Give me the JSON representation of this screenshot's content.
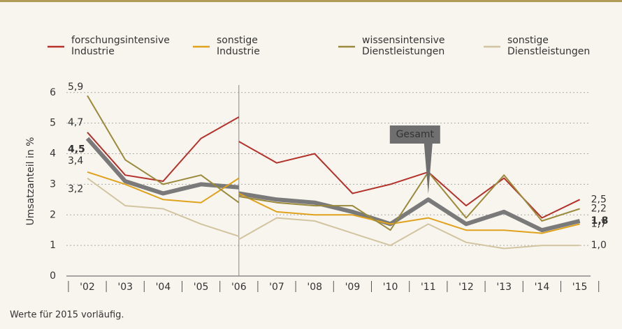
{
  "chart_data": {
    "type": "line",
    "ylabel": "Umsatzanteil in %",
    "note": "Werte für 2015 vorläufig.",
    "categories": [
      "'02",
      "'03",
      "'04",
      "'05",
      "'06",
      null,
      "'07",
      "'08",
      "'09",
      "'10",
      "'11",
      "'12",
      "'13",
      "'14",
      "'15"
    ],
    "ylim": [
      0,
      6.2
    ],
    "yticks": [
      0,
      1,
      2,
      3,
      4,
      5,
      6
    ],
    "grid": true,
    "series": [
      {
        "name": "forschungsintensive\nIndustrie",
        "color": "#b5312b",
        "values": [
          4.7,
          3.3,
          3.1,
          4.5,
          5.2,
          4.4,
          3.7,
          4.0,
          2.7,
          3.0,
          3.4,
          2.3,
          3.2,
          1.9,
          2.5
        ],
        "value_labels": [
          "4,7",
          null,
          null,
          null,
          null,
          null,
          null,
          null,
          null,
          null,
          null,
          null,
          null,
          null,
          "2,5"
        ]
      },
      {
        "name": "sonstige\nIndustrie",
        "color": "#e0a21c",
        "values": [
          3.4,
          3.0,
          2.5,
          2.4,
          3.2,
          2.7,
          2.1,
          2.0,
          2.0,
          1.7,
          1.9,
          1.5,
          1.5,
          1.4,
          1.7
        ],
        "value_labels": [
          "3,4",
          null,
          null,
          null,
          null,
          null,
          null,
          null,
          null,
          null,
          null,
          null,
          null,
          null,
          "1,7"
        ]
      },
      {
        "name": "wissensintensive\nDienstleistungen",
        "color": "#9b8a3c",
        "values": [
          5.9,
          3.8,
          3.0,
          3.3,
          2.4,
          2.6,
          2.4,
          2.3,
          2.3,
          1.5,
          3.4,
          1.9,
          3.3,
          1.8,
          2.2
        ],
        "value_labels": [
          "5,9",
          null,
          null,
          null,
          null,
          null,
          null,
          null,
          null,
          null,
          null,
          null,
          null,
          null,
          "2,2"
        ]
      },
      {
        "name": "sonstige\nDienstleistungen",
        "color": "#d2c4a0",
        "values": [
          3.2,
          2.3,
          2.2,
          1.7,
          1.3,
          1.2,
          1.9,
          1.8,
          1.4,
          1.0,
          1.7,
          1.1,
          0.9,
          1.0,
          1.0
        ],
        "value_labels": [
          "3,2",
          null,
          null,
          null,
          null,
          null,
          null,
          null,
          null,
          null,
          null,
          null,
          null,
          null,
          "1,0"
        ]
      },
      {
        "name": "Gesamt",
        "color": "#7a7a7a",
        "legend": false,
        "values": [
          4.5,
          3.1,
          2.7,
          3.0,
          2.9,
          2.7,
          2.5,
          2.4,
          2.1,
          1.7,
          2.5,
          1.7,
          2.1,
          1.5,
          1.8
        ],
        "value_labels": [
          "4,5",
          null,
          null,
          null,
          null,
          null,
          null,
          null,
          null,
          null,
          null,
          null,
          null,
          null,
          "1,8"
        ]
      }
    ]
  }
}
